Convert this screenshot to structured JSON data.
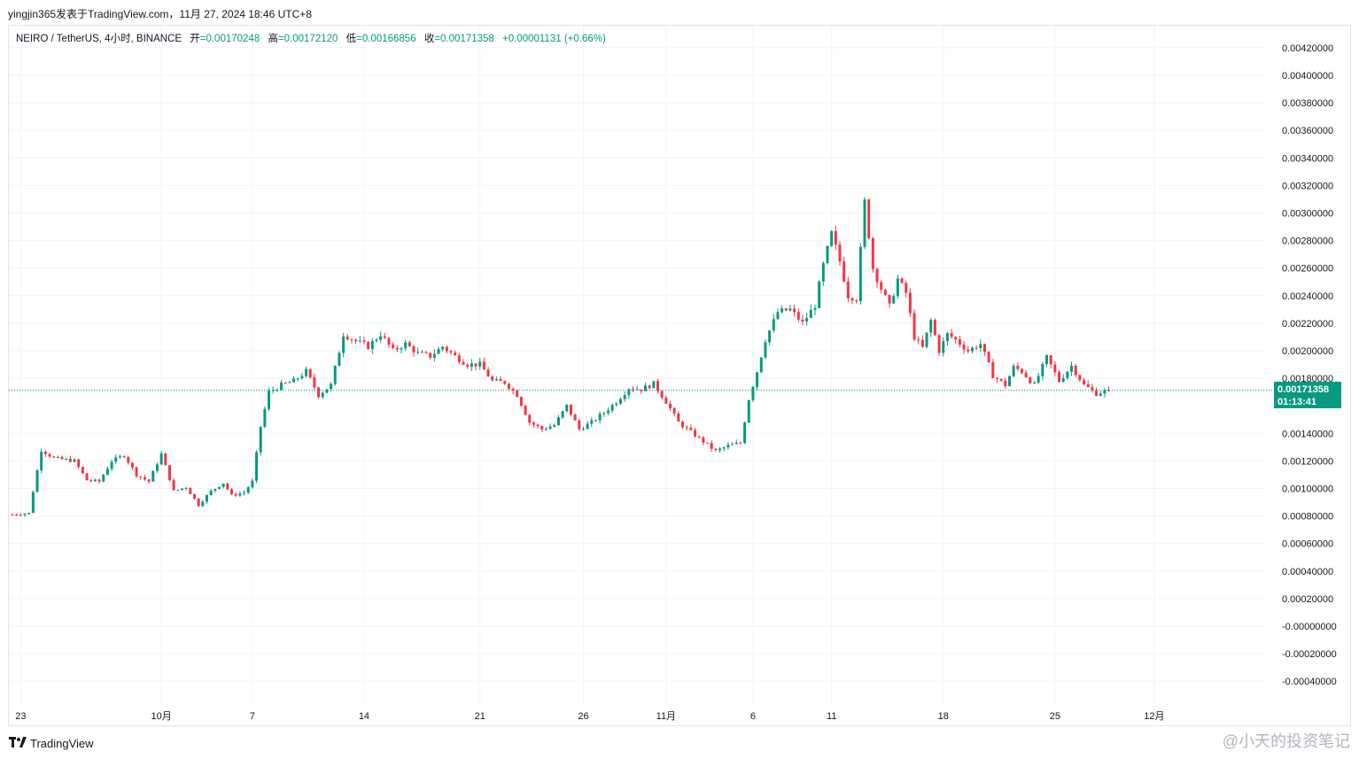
{
  "header": {
    "publisher_line": "yingjin365发表于TradingView.com，11月 27, 2024 18:46 UTC+8"
  },
  "legend": {
    "symbol": "NEIRO / TetherUS, 4小时, BINANCE",
    "open_label": "开",
    "open_value": "=0.00170248",
    "high_label": "高",
    "high_value": "=0.00172120",
    "low_label": "低",
    "low_value": "=0.00166856",
    "close_label": "收",
    "close_value": "=0.00171358",
    "change_value": "+0.00001131 (+0.66%)"
  },
  "price_tag": {
    "price": "0.00171358",
    "countdown": "01:13:41"
  },
  "footer": {
    "logo_text": "TradingView",
    "watermark": "@小天的投资笔记"
  },
  "colors": {
    "up": "#089981",
    "down": "#f23645",
    "grid": "#f0f3fa",
    "axis_text": "#131722",
    "price_line": "#089981"
  },
  "chart_data": {
    "type": "candlestick",
    "title": "NEIRO / TetherUS, 4小时, BINANCE",
    "ylim": [
      -0.00048,
      0.00426
    ],
    "y_ticks": [
      "0.00420000",
      "0.00400000",
      "0.00380000",
      "0.00360000",
      "0.00340000",
      "0.00320000",
      "0.00300000",
      "0.00280000",
      "0.00260000",
      "0.00240000",
      "0.00220000",
      "0.00200000",
      "0.00180000",
      "0.00140000",
      "0.00120000",
      "0.00100000",
      "0.00080000",
      "0.00060000",
      "0.00040000",
      "0.00020000",
      "-0.00000000",
      "-0.00020000",
      "-0.00040000"
    ],
    "y_tick_values": [
      0.0042,
      0.004,
      0.0038,
      0.0036,
      0.0034,
      0.0032,
      0.003,
      0.0028,
      0.0026,
      0.0024,
      0.0022,
      0.002,
      0.0018,
      0.0014,
      0.0012,
      0.001,
      0.0008,
      0.0006,
      0.0004,
      0.0002,
      0.0,
      -0.0002,
      -0.0004
    ],
    "x_ticks": [
      "23",
      "10月",
      "7",
      "14",
      "21",
      "26",
      "11月",
      "6",
      "11",
      "18",
      "25",
      "12月"
    ],
    "x_tick_index": [
      2,
      36,
      58,
      85,
      113,
      138,
      158,
      179,
      198,
      225,
      252,
      276
    ],
    "total_slots": 290,
    "last_price": 0.00171358,
    "grid": true,
    "close_path_anchors": [
      [
        0,
        0.00081
      ],
      [
        4,
        0.00082
      ],
      [
        5,
        0.00098
      ],
      [
        7,
        0.00128
      ],
      [
        10,
        0.00122
      ],
      [
        15,
        0.0012
      ],
      [
        18,
        0.00106
      ],
      [
        21,
        0.00105
      ],
      [
        24,
        0.0012
      ],
      [
        27,
        0.00124
      ],
      [
        30,
        0.0011
      ],
      [
        33,
        0.00105
      ],
      [
        36,
        0.00125
      ],
      [
        39,
        0.00098
      ],
      [
        42,
        0.00101
      ],
      [
        45,
        0.00088
      ],
      [
        48,
        0.00098
      ],
      [
        51,
        0.00104
      ],
      [
        53,
        0.00095
      ],
      [
        56,
        0.00097
      ],
      [
        58,
        0.00105
      ],
      [
        60,
        0.00145
      ],
      [
        62,
        0.0017
      ],
      [
        65,
        0.00175
      ],
      [
        68,
        0.00178
      ],
      [
        71,
        0.00185
      ],
      [
        74,
        0.00168
      ],
      [
        77,
        0.00175
      ],
      [
        80,
        0.00212
      ],
      [
        83,
        0.00207
      ],
      [
        86,
        0.00203
      ],
      [
        89,
        0.00212
      ],
      [
        92,
        0.002
      ],
      [
        95,
        0.00205
      ],
      [
        98,
        0.00198
      ],
      [
        101,
        0.00196
      ],
      [
        104,
        0.00203
      ],
      [
        107,
        0.00196
      ],
      [
        110,
        0.0019
      ],
      [
        113,
        0.0019
      ],
      [
        116,
        0.00178
      ],
      [
        119,
        0.00177
      ],
      [
        122,
        0.00168
      ],
      [
        125,
        0.00148
      ],
      [
        128,
        0.00143
      ],
      [
        131,
        0.00146
      ],
      [
        134,
        0.0016
      ],
      [
        137,
        0.00143
      ],
      [
        140,
        0.00148
      ],
      [
        143,
        0.00155
      ],
      [
        146,
        0.00163
      ],
      [
        149,
        0.00173
      ],
      [
        152,
        0.00172
      ],
      [
        155,
        0.00176
      ],
      [
        158,
        0.00163
      ],
      [
        161,
        0.00148
      ],
      [
        164,
        0.00141
      ],
      [
        167,
        0.00134
      ],
      [
        170,
        0.00127
      ],
      [
        173,
        0.00131
      ],
      [
        176,
        0.00133
      ],
      [
        178,
        0.00165
      ],
      [
        180,
        0.00185
      ],
      [
        182,
        0.00208
      ],
      [
        185,
        0.00228
      ],
      [
        188,
        0.0023
      ],
      [
        191,
        0.0022
      ],
      [
        194,
        0.00233
      ],
      [
        196,
        0.00262
      ],
      [
        198,
        0.00285
      ],
      [
        200,
        0.00265
      ],
      [
        202,
        0.0024
      ],
      [
        204,
        0.00238
      ],
      [
        206,
        0.00308
      ],
      [
        208,
        0.0026
      ],
      [
        210,
        0.00245
      ],
      [
        212,
        0.00232
      ],
      [
        214,
        0.00252
      ],
      [
        216,
        0.00242
      ],
      [
        218,
        0.0021
      ],
      [
        220,
        0.00202
      ],
      [
        222,
        0.00222
      ],
      [
        224,
        0.002
      ],
      [
        226,
        0.00212
      ],
      [
        228,
        0.00208
      ],
      [
        231,
        0.002
      ],
      [
        234,
        0.00205
      ],
      [
        237,
        0.00182
      ],
      [
        240,
        0.00175
      ],
      [
        242,
        0.00188
      ],
      [
        244,
        0.00185
      ],
      [
        247,
        0.00175
      ],
      [
        250,
        0.00195
      ],
      [
        253,
        0.00178
      ],
      [
        256,
        0.00189
      ],
      [
        259,
        0.00175
      ],
      [
        262,
        0.00169
      ],
      [
        265,
        0.00171358
      ]
    ]
  }
}
